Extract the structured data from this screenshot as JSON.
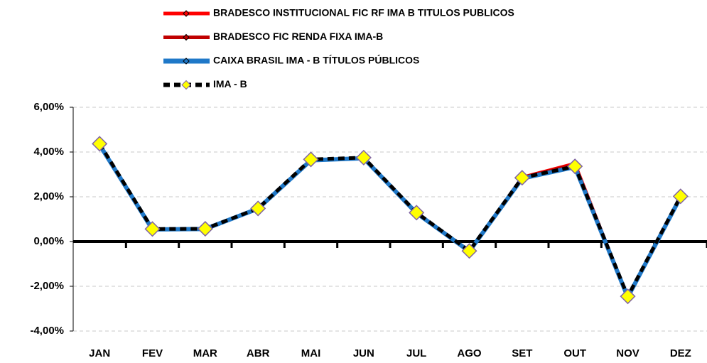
{
  "chart_data": {
    "type": "line",
    "categories": [
      "JAN",
      "FEV",
      "MAR",
      "ABR",
      "MAI",
      "JUN",
      "JUL",
      "AGO",
      "SET",
      "OUT",
      "NOV",
      "DEZ"
    ],
    "series": [
      {
        "name": "BRADESCO INSTITUCIONAL FIC RF IMA B TITULOS PUBLICOS",
        "color": "#ff0000",
        "values": [
          4.3,
          0.55,
          0.57,
          1.48,
          3.65,
          3.73,
          1.28,
          -0.43,
          2.88,
          3.5,
          -2.47,
          2.0
        ]
      },
      {
        "name": "BRADESCO FIC RENDA FIXA IMA-B",
        "color": "#c00000",
        "values": [
          4.3,
          0.54,
          0.56,
          1.47,
          3.64,
          3.72,
          1.27,
          -0.44,
          2.87,
          3.45,
          -2.48,
          1.99
        ]
      },
      {
        "name": "CAIXA BRASIL IMA - B TÍTULOS PÚBLICOS",
        "color": "#1f78c8",
        "values": [
          4.32,
          0.54,
          0.56,
          1.47,
          3.63,
          3.72,
          1.27,
          -0.44,
          2.82,
          3.33,
          -2.49,
          1.99
        ]
      },
      {
        "name": "IMA - B",
        "color": "#000000",
        "values": [
          4.37,
          0.56,
          0.57,
          1.48,
          3.67,
          3.75,
          1.29,
          -0.42,
          2.85,
          3.36,
          -2.45,
          2.02
        ]
      }
    ],
    "ylim": [
      -4,
      6
    ],
    "yticks": [
      {
        "value": -4,
        "label": "-4,00%"
      },
      {
        "value": -2,
        "label": "-2,00%"
      },
      {
        "value": 0,
        "label": "0,00%"
      },
      {
        "value": 2,
        "label": "2,00%"
      },
      {
        "value": 4,
        "label": "4,00%"
      },
      {
        "value": 6,
        "label": "6,00%"
      }
    ],
    "grid": true
  }
}
